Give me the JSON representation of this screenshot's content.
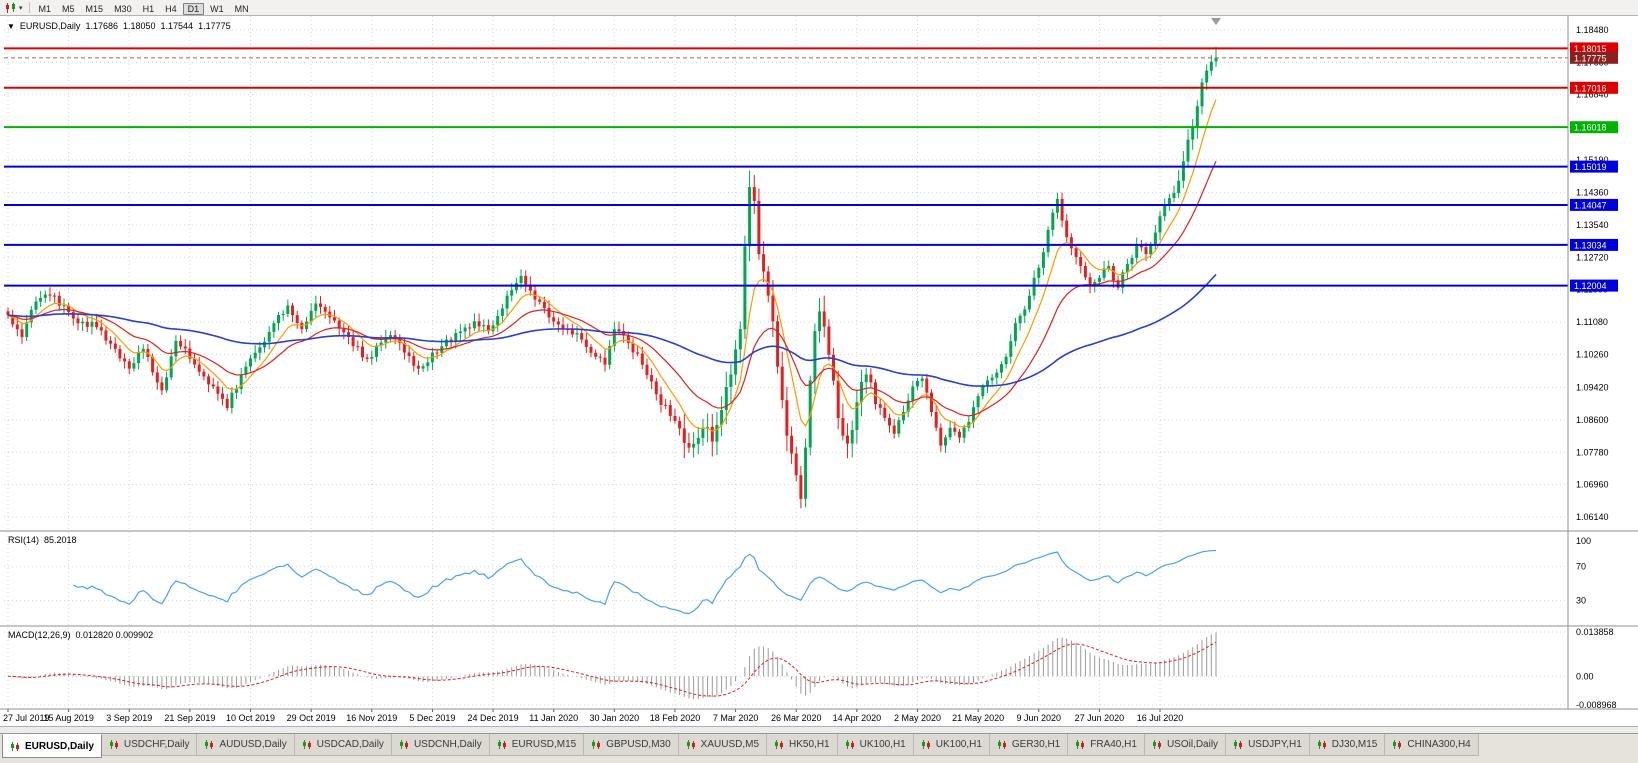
{
  "toolbar": {
    "timeframes": [
      {
        "label": "M1",
        "active": false
      },
      {
        "label": "M5",
        "active": false
      },
      {
        "label": "M15",
        "active": false
      },
      {
        "label": "M30",
        "active": false
      },
      {
        "label": "H1",
        "active": false
      },
      {
        "label": "H4",
        "active": false
      },
      {
        "label": "D1",
        "active": true
      },
      {
        "label": "W1",
        "active": false
      },
      {
        "label": "MN",
        "active": false
      }
    ]
  },
  "chart": {
    "symbol": "EURUSD,Daily",
    "ohlc": {
      "open": "1.17686",
      "high": "1.18050",
      "low": "1.17544",
      "close": "1.17775"
    }
  },
  "indicators": {
    "rsi": {
      "label": "RSI(14)",
      "value": "85.2018",
      "axis_labels": [
        "100",
        "70",
        "30"
      ],
      "axis_values": [
        100,
        70,
        30
      ]
    },
    "macd": {
      "label": "MACD(12,26,9)",
      "value": "0.012820 0.009902",
      "axis_labels": [
        "0.013858",
        "0.00",
        "-0.008968"
      ],
      "axis_values": [
        0.013858,
        0,
        -0.008968
      ]
    }
  },
  "tabs": [
    {
      "label": "EURUSD,Daily",
      "active": true
    },
    {
      "label": "USDCHF,Daily",
      "active": false
    },
    {
      "label": "AUDUSD,Daily",
      "active": false
    },
    {
      "label": "USDCAD,Daily",
      "active": false
    },
    {
      "label": "USDCNH,Daily",
      "active": false
    },
    {
      "label": "EURUSD,M15",
      "active": false
    },
    {
      "label": "GBPUSD,M30",
      "active": false
    },
    {
      "label": "XAUUSD,M5",
      "active": false
    },
    {
      "label": "HK50,H1",
      "active": false
    },
    {
      "label": "UK100,H1",
      "active": false
    },
    {
      "label": "UK100,H1",
      "active": false
    },
    {
      "label": "GER30,H1",
      "active": false
    },
    {
      "label": "FRA40,H1",
      "active": false
    },
    {
      "label": "USOil,Daily",
      "active": false
    },
    {
      "label": "USDJPY,H1",
      "active": false
    },
    {
      "label": "DJ30,M15",
      "active": false
    },
    {
      "label": "CHINA300,H4",
      "active": false
    }
  ],
  "colors": {
    "candle_up": "#00a651",
    "candle_down": "#e32020",
    "level_red": "#dd0000",
    "level_green": "#00b300",
    "level_blue": "#0000dd",
    "current_price_box": "#8b2020",
    "current_price_line": "#c25555",
    "ma_fast": "#ff9900",
    "ma_mid": "#e02020",
    "ma_slow": "#2741cf",
    "rsi_line": "#4aa3e8",
    "macd_hist": "#9a9a9a",
    "macd_signal": "#dd2020",
    "grid": "#d4d4d4"
  },
  "chart_data": {
    "type": "candlestick",
    "symbol": "EURUSD",
    "timeframe": "Daily",
    "n_candles": 260,
    "current_ohlc": {
      "open": 1.17686,
      "high": 1.1805,
      "low": 1.17544,
      "close": 1.17775
    },
    "y_axis_prices": [
      "1.18480",
      "1.17660",
      "1.16840",
      "1.16020",
      "1.15190",
      "1.14360",
      "1.13540",
      "1.12720",
      "1.11900",
      "1.11080",
      "1.10260",
      "1.09420",
      "1.08600",
      "1.07780",
      "1.06960",
      "1.06140"
    ],
    "x_labels": [
      "27 Jul 2019",
      "15 Aug 2019",
      "3 Sep 2019",
      "21 Sep 2019",
      "10 Oct 2019",
      "29 Oct 2019",
      "16 Nov 2019",
      "5 Dec 2019",
      "24 Dec 2019",
      "11 Jan 2020",
      "30 Jan 2020",
      "18 Feb 2020",
      "7 Mar 2020",
      "26 Mar 2020",
      "14 Apr 2020",
      "2 May 2020",
      "21 May 2020",
      "9 Jun 2020",
      "27 Jun 2020",
      "16 Jul 2020"
    ],
    "x_label_indices": [
      0,
      13,
      26,
      39,
      52,
      65,
      78,
      91,
      104,
      117,
      130,
      143,
      156,
      169,
      182,
      195,
      208,
      221,
      234,
      247
    ],
    "levels": [
      {
        "label": "1.18015",
        "value": 1.18015,
        "color": "#dd0000"
      },
      {
        "label": "1.17016",
        "value": 1.17016,
        "color": "#dd0000"
      },
      {
        "label": "1.16018",
        "value": 1.16018,
        "color": "#00b300"
      },
      {
        "label": "1.15019",
        "value": 1.15019,
        "color": "#0000dd"
      },
      {
        "label": "1.14047",
        "value": 1.14047,
        "color": "#0000dd"
      },
      {
        "label": "1.13034",
        "value": 1.13034,
        "color": "#0000dd"
      },
      {
        "label": "1.12004",
        "value": 1.12004,
        "color": "#0000dd"
      }
    ],
    "current_price": {
      "label": "1.17775",
      "value": 1.17775
    },
    "close_waypoints": [
      [
        0,
        1.1125
      ],
      [
        3,
        1.107
      ],
      [
        6,
        1.116
      ],
      [
        9,
        1.1175
      ],
      [
        12,
        1.115
      ],
      [
        15,
        1.1105
      ],
      [
        19,
        1.1095
      ],
      [
        23,
        1.104
      ],
      [
        26,
        1.099
      ],
      [
        29,
        1.104
      ],
      [
        33,
        1.0935
      ],
      [
        36,
        1.106
      ],
      [
        39,
        1.1015
      ],
      [
        43,
        1.095
      ],
      [
        47,
        1.089
      ],
      [
        50,
        1.0975
      ],
      [
        53,
        1.103
      ],
      [
        57,
        1.1105
      ],
      [
        60,
        1.115
      ],
      [
        63,
        1.109
      ],
      [
        66,
        1.1155
      ],
      [
        69,
        1.112
      ],
      [
        73,
        1.107
      ],
      [
        77,
        1.1015
      ],
      [
        81,
        1.107
      ],
      [
        84,
        1.1055
      ],
      [
        88,
        1.099
      ],
      [
        92,
        1.103
      ],
      [
        96,
        1.108
      ],
      [
        100,
        1.111
      ],
      [
        103,
        1.1085
      ],
      [
        107,
        1.1175
      ],
      [
        110,
        1.1225
      ],
      [
        113,
        1.1165
      ],
      [
        116,
        1.112
      ],
      [
        119,
        1.109
      ],
      [
        122,
        1.108
      ],
      [
        125,
        1.103
      ],
      [
        128,
        1.1
      ],
      [
        130,
        1.109
      ],
      [
        133,
        1.1055
      ],
      [
        136,
        1.1
      ],
      [
        139,
        1.0925
      ],
      [
        142,
        1.087
      ],
      [
        146,
        1.079
      ],
      [
        149,
        1.084
      ],
      [
        151,
        1.0805
      ],
      [
        153,
        1.0885
      ],
      [
        155,
        1.0975
      ],
      [
        157,
        1.109
      ],
      [
        158,
        1.13
      ],
      [
        159,
        1.145
      ],
      [
        160,
        1.1415
      ],
      [
        161,
        1.128
      ],
      [
        163,
        1.1175
      ],
      [
        164,
        1.111
      ],
      [
        165,
        1.0995
      ],
      [
        166,
        1.091
      ],
      [
        167,
        1.082
      ],
      [
        168,
        1.0775
      ],
      [
        169,
        1.072
      ],
      [
        170,
        1.066
      ],
      [
        171,
        1.079
      ],
      [
        172,
        1.096
      ],
      [
        173,
        1.1085
      ],
      [
        174,
        1.1135
      ],
      [
        176,
        1.1025
      ],
      [
        178,
        1.0865
      ],
      [
        180,
        1.08
      ],
      [
        182,
        1.0905
      ],
      [
        184,
        1.0975
      ],
      [
        186,
        1.09
      ],
      [
        188,
        1.0865
      ],
      [
        190,
        1.0825
      ],
      [
        192,
        1.088
      ],
      [
        194,
        1.0945
      ],
      [
        196,
        1.0965
      ],
      [
        198,
        1.088
      ],
      [
        200,
        1.0795
      ],
      [
        202,
        1.084
      ],
      [
        204,
        1.0815
      ],
      [
        206,
        1.0855
      ],
      [
        208,
        1.092
      ],
      [
        210,
        1.096
      ],
      [
        212,
        1.098
      ],
      [
        214,
        1.102
      ],
      [
        216,
        1.1105
      ],
      [
        218,
        1.114
      ],
      [
        220,
        1.122
      ],
      [
        222,
        1.1285
      ],
      [
        224,
        1.1385
      ],
      [
        225,
        1.142
      ],
      [
        226,
        1.1365
      ],
      [
        228,
        1.1295
      ],
      [
        230,
        1.125
      ],
      [
        232,
        1.12
      ],
      [
        234,
        1.122
      ],
      [
        236,
        1.125
      ],
      [
        238,
        1.1195
      ],
      [
        240,
        1.1255
      ],
      [
        242,
        1.1305
      ],
      [
        244,
        1.128
      ],
      [
        246,
        1.1335
      ],
      [
        248,
        1.1405
      ],
      [
        250,
        1.1435
      ],
      [
        252,
        1.1515
      ],
      [
        253,
        1.157
      ],
      [
        254,
        1.16
      ],
      [
        255,
        1.1655
      ],
      [
        256,
        1.1715
      ],
      [
        257,
        1.1745
      ],
      [
        258,
        1.1768
      ],
      [
        259,
        1.17775
      ]
    ],
    "moving_averages": [
      {
        "period": 8,
        "color": "#ff9900"
      },
      {
        "period": 21,
        "color": "#e02020"
      },
      {
        "period": 89,
        "color": "#2741cf"
      }
    ],
    "rsi": {
      "period": 14,
      "current": 85.2018
    },
    "macd": {
      "fast": 12,
      "slow": 26,
      "signal_period": 9,
      "macd_current": 0.01282,
      "signal_current": 0.009902
    }
  }
}
